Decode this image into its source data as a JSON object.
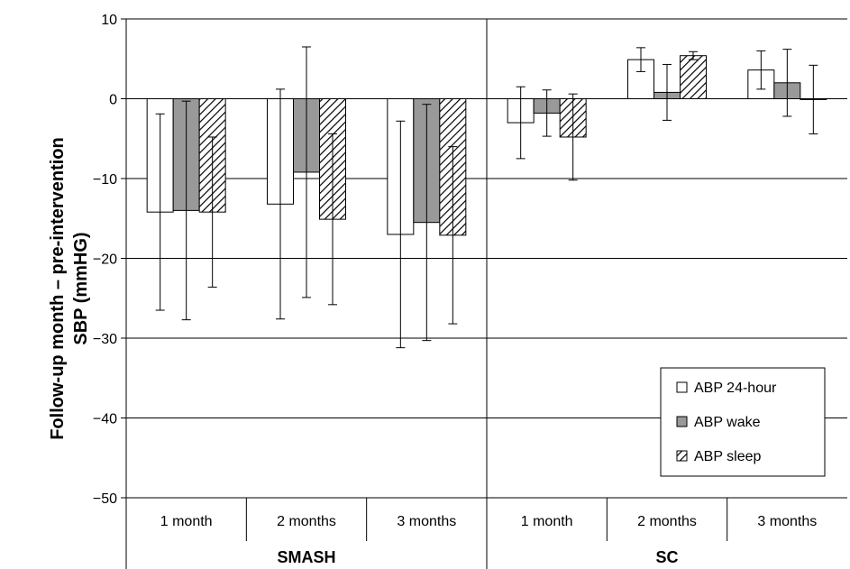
{
  "chart_data": {
    "type": "bar",
    "title": "",
    "ylabel_lines": [
      "Follow-up month  – pre-intervention",
      "SBP (mmHG)"
    ],
    "ylim": [
      -50,
      10
    ],
    "yticks": [
      10,
      0,
      -10,
      -20,
      -30,
      -40,
      -50
    ],
    "ytick_labels": [
      "10",
      "0",
      "−10",
      "−20",
      "−30",
      "−40",
      "−50"
    ],
    "grid": true,
    "legend_position": "bottom-right",
    "groups": [
      {
        "label": "SMASH",
        "categories": [
          "1 month",
          "2 months",
          "3 months"
        ]
      },
      {
        "label": "SC",
        "categories": [
          "1 month",
          "2 months",
          "3 months"
        ]
      }
    ],
    "series": [
      {
        "name": "ABP 24-hour",
        "color": "#ffffff",
        "pattern": "none",
        "values": [
          -14.2,
          -13.2,
          -17.0,
          -3.0,
          4.9,
          3.6
        ],
        "error": [
          12.3,
          14.4,
          14.2,
          4.5,
          1.5,
          2.4
        ]
      },
      {
        "name": "ABP wake",
        "color": "#999999",
        "pattern": "none",
        "values": [
          -14.0,
          -9.2,
          -15.5,
          -1.8,
          0.8,
          2.0
        ],
        "error": [
          13.7,
          15.7,
          14.8,
          2.9,
          3.5,
          4.2
        ]
      },
      {
        "name": "ABP sleep",
        "color": "#ffffff",
        "pattern": "diagonal-hatch",
        "values": [
          -14.2,
          -15.1,
          -17.1,
          -4.8,
          5.4,
          -0.1
        ],
        "error": [
          9.4,
          10.7,
          11.1,
          5.4,
          0.5,
          4.3
        ]
      }
    ]
  }
}
